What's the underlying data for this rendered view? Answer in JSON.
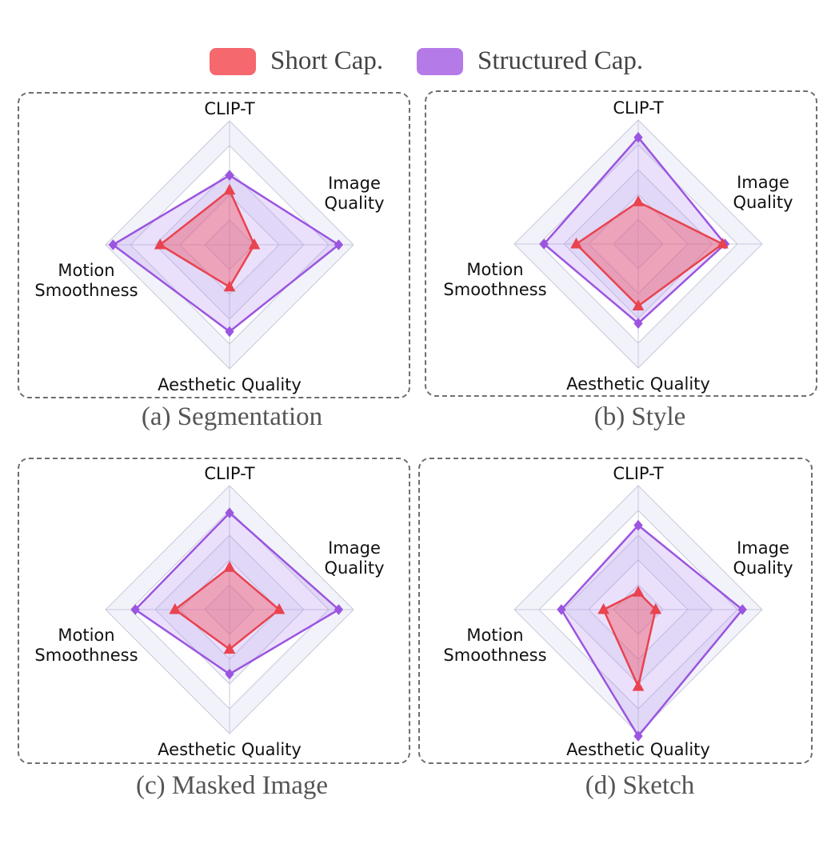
{
  "legend": {
    "items": [
      {
        "label": "Short Cap.",
        "color": "#f4686e"
      },
      {
        "label": "Structured Cap.",
        "color": "#b47ae8"
      }
    ]
  },
  "colors": {
    "short_line": "#e8434f",
    "short_fill": "#f0586a",
    "structured_line": "#9b55e0",
    "structured_fill": "#b88ef0",
    "grid_line": "#c8c9dc",
    "ring_fill": "#e8e9f5",
    "frame": "#6e6e6e"
  },
  "chart_data": [
    {
      "type": "radar",
      "caption": "(a) Segmentation",
      "axes": [
        "CLIP-T",
        "Image Quality",
        "Aesthetic Quality",
        "Motion Smoothness"
      ],
      "axis_label_lines": [
        [
          "CLIP-T"
        ],
        [
          "Image",
          "Quality"
        ],
        [
          "Aesthetic Quality"
        ],
        [
          "Motion",
          "Smoothness"
        ]
      ],
      "rlim": [
        0,
        5
      ],
      "rings": 5,
      "series": [
        {
          "name": "Short Cap.",
          "values": [
            2.2,
            1.0,
            1.7,
            2.8
          ],
          "marker": "triangle"
        },
        {
          "name": "Structured Cap.",
          "values": [
            2.8,
            4.4,
            3.5,
            4.7
          ],
          "marker": "diamond"
        }
      ]
    },
    {
      "type": "radar",
      "caption": "(b) Style",
      "axes": [
        "CLIP-T",
        "Image Quality",
        "Aesthetic Quality",
        "Motion Smoothness"
      ],
      "axis_label_lines": [
        [
          "CLIP-T"
        ],
        [
          "Image",
          "Quality"
        ],
        [
          "Aesthetic Quality"
        ],
        [
          "Motion",
          "Smoothness"
        ]
      ],
      "rlim": [
        0,
        5
      ],
      "rings": 5,
      "series": [
        {
          "name": "Short Cap.",
          "values": [
            1.7,
            3.4,
            2.5,
            2.5
          ],
          "marker": "triangle"
        },
        {
          "name": "Structured Cap.",
          "values": [
            4.3,
            3.5,
            3.2,
            3.8
          ],
          "marker": "diamond"
        }
      ]
    },
    {
      "type": "radar",
      "caption": "(c) Masked Image",
      "axes": [
        "CLIP-T",
        "Image Quality",
        "Aesthetic Quality",
        "Motion Smoothness"
      ],
      "axis_label_lines": [
        [
          "CLIP-T"
        ],
        [
          "Image",
          "Quality"
        ],
        [
          "Aesthetic Quality"
        ],
        [
          "Motion",
          "Smoothness"
        ]
      ],
      "rlim": [
        0,
        5
      ],
      "rings": 5,
      "series": [
        {
          "name": "Short Cap.",
          "values": [
            1.7,
            2.0,
            1.6,
            2.2
          ],
          "marker": "triangle"
        },
        {
          "name": "Structured Cap.",
          "values": [
            3.9,
            4.4,
            2.6,
            3.8
          ],
          "marker": "diamond"
        }
      ]
    },
    {
      "type": "radar",
      "caption": "(d) Sketch",
      "axes": [
        "CLIP-T",
        "Image Quality",
        "Aesthetic Quality",
        "Motion Smoothness"
      ],
      "axis_label_lines": [
        [
          "CLIP-T"
        ],
        [
          "Image",
          "Quality"
        ],
        [
          "Aesthetic Quality"
        ],
        [
          "Motion",
          "Smoothness"
        ]
      ],
      "rlim": [
        0,
        5
      ],
      "rings": 5,
      "series": [
        {
          "name": "Short Cap.",
          "values": [
            0.7,
            0.7,
            3.1,
            1.4
          ],
          "marker": "triangle"
        },
        {
          "name": "Structured Cap.",
          "values": [
            3.4,
            4.2,
            5.1,
            3.1
          ],
          "marker": "diamond"
        }
      ]
    }
  ]
}
